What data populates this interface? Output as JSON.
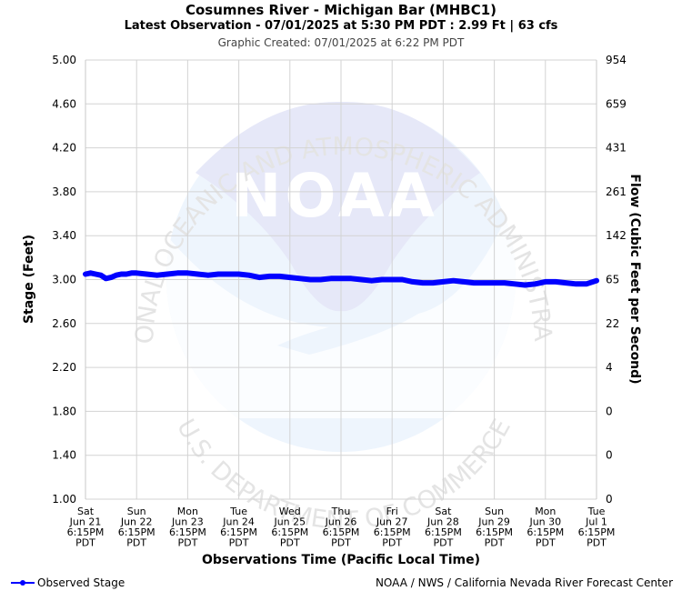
{
  "header": {
    "title": "Cosumnes River - Michigan Bar (MHBC1)",
    "subtitle": "Latest Observation - 07/01/2025 at 5:30 PM PDT : 2.99 Ft | 63 cfs",
    "created": "Graphic Created: 07/01/2025 at 6:22 PM PDT"
  },
  "footer": {
    "legend_label": "Observed Stage",
    "credit": "NOAA / NWS / California Nevada River Forecast Center"
  },
  "watermark": {
    "logo_text": "NOAA",
    "top_text": "NATIONAL OCEANIC AND ATMOSPHERIC ADMINISTRATION",
    "bottom_text": "U.S. DEPARTMENT OF COMMERCE"
  },
  "chart_data": {
    "type": "line",
    "xlabel": "Observations Time (Pacific Local Time)",
    "ylabel": "Stage (Feet)",
    "y2label": "Flow (Cubic Feet per Second)",
    "ylim": [
      1.0,
      5.0
    ],
    "yticks": [
      "1.00",
      "1.40",
      "1.80",
      "2.20",
      "2.60",
      "3.00",
      "3.40",
      "3.80",
      "4.20",
      "4.60",
      "5.00"
    ],
    "y2ticks": [
      "0",
      "0",
      "0",
      "4",
      "22",
      "65",
      "142",
      "261",
      "431",
      "659",
      "954"
    ],
    "xticks": [
      [
        "Sat",
        "Jun 21",
        "6:15PM",
        "PDT"
      ],
      [
        "Sun",
        "Jun 22",
        "6:15PM",
        "PDT"
      ],
      [
        "Mon",
        "Jun 23",
        "6:15PM",
        "PDT"
      ],
      [
        "Tue",
        "Jun 24",
        "6:15PM",
        "PDT"
      ],
      [
        "Wed",
        "Jun 25",
        "6:15PM",
        "PDT"
      ],
      [
        "Thu",
        "Jun 26",
        "6:15PM",
        "PDT"
      ],
      [
        "Fri",
        "Jun 27",
        "6:15PM",
        "PDT"
      ],
      [
        "Sat",
        "Jun 28",
        "6:15PM",
        "PDT"
      ],
      [
        "Sun",
        "Jun 29",
        "6:15PM",
        "PDT"
      ],
      [
        "Mon",
        "Jun 30",
        "6:15PM",
        "PDT"
      ],
      [
        "Tue",
        "Jul 1",
        "6:15PM",
        "PDT"
      ]
    ],
    "xlim": [
      0,
      10
    ],
    "grid": true,
    "series": [
      {
        "name": "Observed Stage",
        "color": "#0000ff",
        "x": [
          0,
          0.1,
          0.2,
          0.3,
          0.4,
          0.5,
          0.6,
          0.7,
          0.8,
          0.9,
          1.0,
          1.2,
          1.4,
          1.6,
          1.8,
          2.0,
          2.2,
          2.4,
          2.6,
          2.8,
          3.0,
          3.2,
          3.4,
          3.6,
          3.8,
          4.0,
          4.2,
          4.4,
          4.6,
          4.8,
          5.0,
          5.2,
          5.4,
          5.6,
          5.8,
          6.0,
          6.2,
          6.4,
          6.6,
          6.8,
          7.0,
          7.2,
          7.4,
          7.6,
          7.8,
          8.0,
          8.2,
          8.4,
          8.6,
          8.8,
          9.0,
          9.2,
          9.4,
          9.6,
          9.8,
          10.0
        ],
        "y": [
          3.05,
          3.06,
          3.05,
          3.04,
          3.01,
          3.02,
          3.04,
          3.05,
          3.05,
          3.06,
          3.06,
          3.05,
          3.04,
          3.05,
          3.06,
          3.06,
          3.05,
          3.04,
          3.05,
          3.05,
          3.05,
          3.04,
          3.02,
          3.03,
          3.03,
          3.02,
          3.01,
          3.0,
          3.0,
          3.01,
          3.01,
          3.01,
          3.0,
          2.99,
          3.0,
          3.0,
          3.0,
          2.98,
          2.97,
          2.97,
          2.98,
          2.99,
          2.98,
          2.97,
          2.97,
          2.97,
          2.97,
          2.96,
          2.95,
          2.96,
          2.98,
          2.98,
          2.97,
          2.96,
          2.96,
          2.99
        ]
      }
    ]
  }
}
